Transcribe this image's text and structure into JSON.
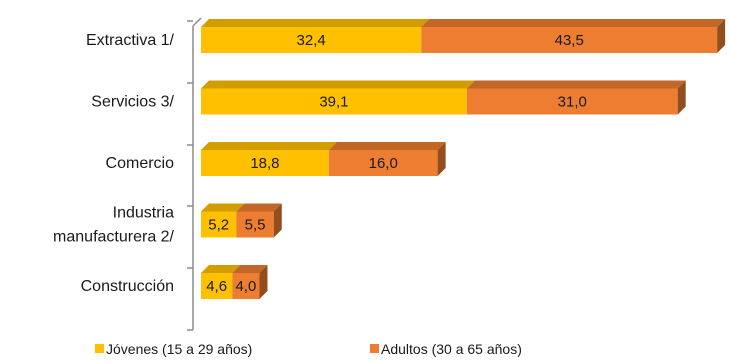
{
  "chart_data": {
    "type": "bar",
    "orientation": "horizontal",
    "stacked": true,
    "style": "3d",
    "categories": [
      "Extractiva 1/",
      "Servicios 3/",
      "Comercio",
      "Industria manufacturera 2/",
      "Construcción"
    ],
    "category_lines": [
      [
        "Extractiva 1/"
      ],
      [
        "Servicios 3/"
      ],
      [
        "Comercio"
      ],
      [
        "Industria",
        "manufacturera 2/"
      ],
      [
        "Construcción"
      ]
    ],
    "series": [
      {
        "name": "Jóvenes (15 a 29 años)",
        "values": [
          32.4,
          39.1,
          18.8,
          5.2,
          4.6
        ],
        "value_labels": [
          "32,4",
          "39,1",
          "18,8",
          "5,2",
          "4,6"
        ],
        "color": "#FFC000"
      },
      {
        "name": "Adultos (30 a 65 años)",
        "values": [
          43.5,
          31.0,
          16.0,
          5.5,
          4.0
        ],
        "value_labels": [
          "43,5",
          "31,0",
          "16,0",
          "5,5",
          "4,0"
        ],
        "color": "#ED7D31"
      }
    ],
    "xlim": [
      0,
      76
    ],
    "grid": false,
    "legend_position": "bottom"
  }
}
